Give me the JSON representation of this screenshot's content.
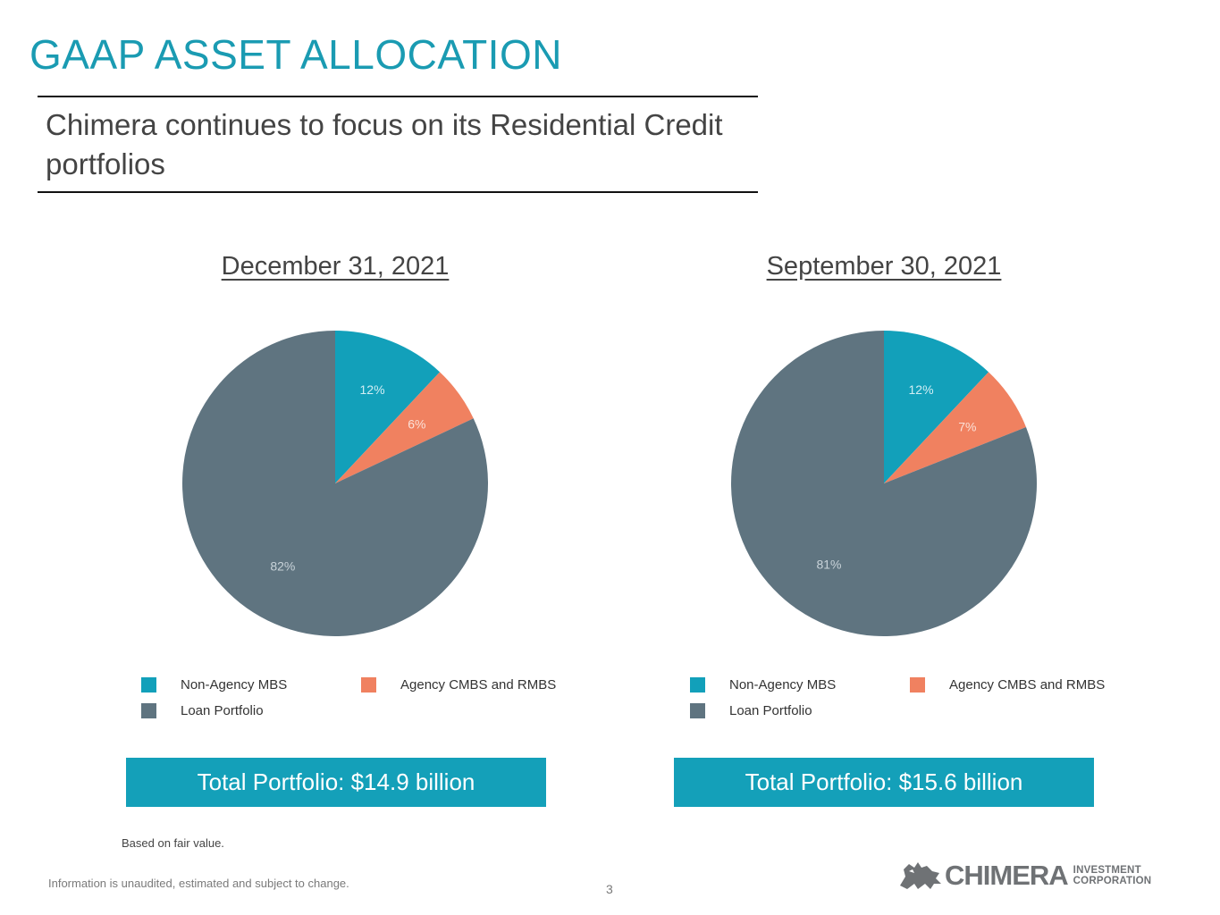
{
  "header": {
    "title": "GAAP ASSET ALLOCATION",
    "subtitle": "Chimera continues to focus on its Residential Credit portfolios"
  },
  "colors": {
    "accent": "#1a9bb2",
    "non_agency": "#12a0ba",
    "agency": "#f08160",
    "loan": "#5f7480",
    "total_box": "#14a0b9"
  },
  "legend": [
    "Non-Agency MBS",
    "Agency CMBS and RMBS",
    "Loan Portfolio"
  ],
  "chart_data": [
    {
      "type": "pie",
      "title": "December 31, 2021",
      "categories": [
        "Non-Agency MBS",
        "Agency CMBS and RMBS",
        "Loan Portfolio"
      ],
      "values": [
        12,
        6,
        82
      ],
      "labels": [
        "12%",
        "6%",
        "82%"
      ],
      "legend_position": "bottom",
      "total": "Total Portfolio: $14.9 billion"
    },
    {
      "type": "pie",
      "title": "September 30, 2021",
      "categories": [
        "Non-Agency MBS",
        "Agency CMBS and RMBS",
        "Loan Portfolio"
      ],
      "values": [
        12,
        7,
        81
      ],
      "labels": [
        "12%",
        "7%",
        "81%"
      ],
      "legend_position": "bottom",
      "total": "Total Portfolio: $15.6 billion"
    }
  ],
  "footer": {
    "note": "Based on fair value.",
    "disclaimer": "Information is unaudited, estimated and subject to change.",
    "page_number": "3",
    "logo_word": "CHIMERA",
    "logo_line1": "INVESTMENT",
    "logo_line2": "CORPORATION"
  }
}
